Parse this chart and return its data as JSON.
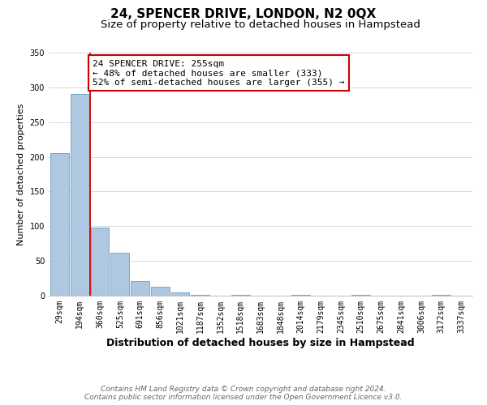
{
  "title": "24, SPENCER DRIVE, LONDON, N2 0QX",
  "subtitle": "Size of property relative to detached houses in Hampstead",
  "xlabel": "Distribution of detached houses by size in Hampstead",
  "ylabel": "Number of detached properties",
  "bar_labels": [
    "29sqm",
    "194sqm",
    "360sqm",
    "525sqm",
    "691sqm",
    "856sqm",
    "1021sqm",
    "1187sqm",
    "1352sqm",
    "1518sqm",
    "1683sqm",
    "1848sqm",
    "2014sqm",
    "2179sqm",
    "2345sqm",
    "2510sqm",
    "2675sqm",
    "2841sqm",
    "3006sqm",
    "3172sqm",
    "3337sqm"
  ],
  "bar_values": [
    205,
    291,
    98,
    62,
    21,
    13,
    5,
    1,
    0,
    1,
    0,
    0,
    1,
    0,
    0,
    1,
    0,
    0,
    0,
    1,
    0
  ],
  "bar_color": "#adc8e0",
  "bar_edge_color": "#6a9fc0",
  "vline_x": 1.5,
  "vline_color": "#cc0000",
  "annotation_text": "24 SPENCER DRIVE: 255sqm\n← 48% of detached houses are smaller (333)\n52% of semi-detached houses are larger (355) →",
  "annotation_box_color": "#ffffff",
  "annotation_box_edge": "#cc0000",
  "ylim": [
    0,
    350
  ],
  "yticks": [
    0,
    50,
    100,
    150,
    200,
    250,
    300,
    350
  ],
  "footer_line1": "Contains HM Land Registry data © Crown copyright and database right 2024.",
  "footer_line2": "Contains public sector information licensed under the Open Government Licence v3.0.",
  "background_color": "#ffffff",
  "grid_color": "#d0dde8",
  "title_fontsize": 11,
  "subtitle_fontsize": 9.5,
  "xlabel_fontsize": 9,
  "ylabel_fontsize": 8,
  "tick_fontsize": 7,
  "annotation_fontsize": 8,
  "footer_fontsize": 6.5
}
